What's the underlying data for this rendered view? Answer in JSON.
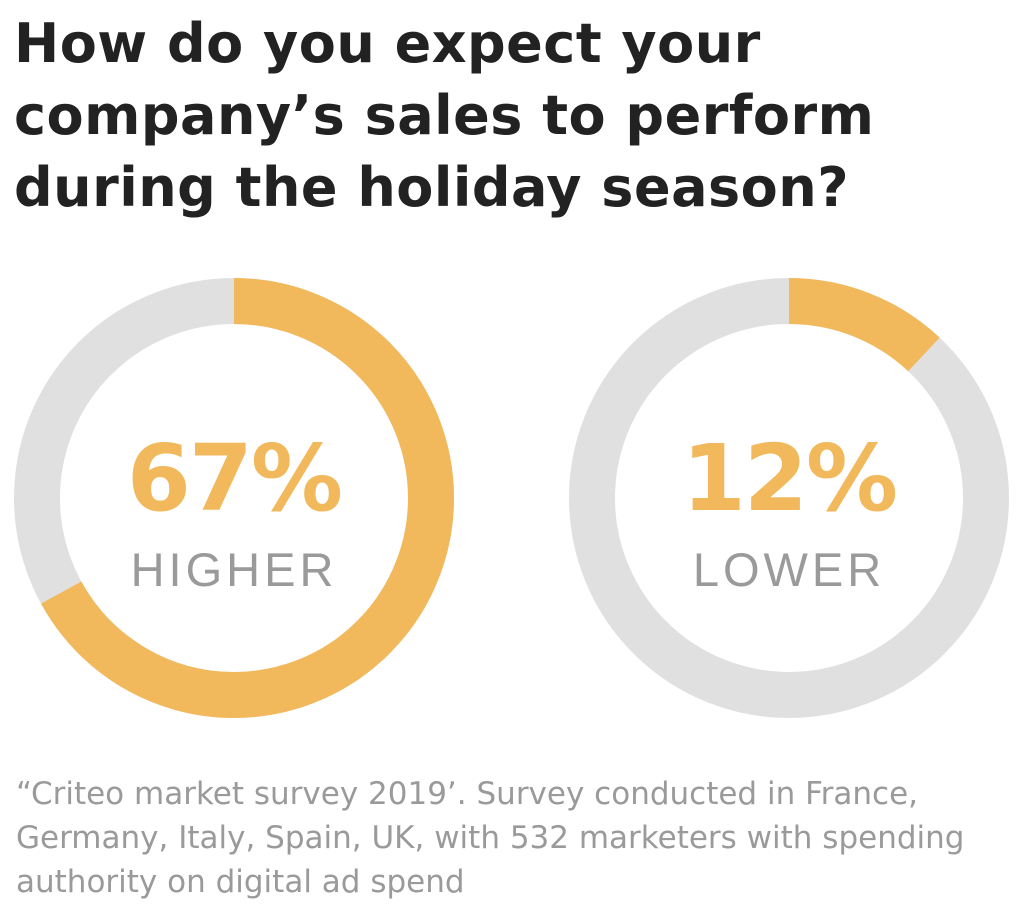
{
  "title": "How do you expect your company’s sales to perform during the holiday season?",
  "colors": {
    "accent": "#F2B95C",
    "track": "#E0E0E0",
    "title": "#222222",
    "label": "#9A9A9A"
  },
  "chart_data": {
    "type": "pie",
    "title": "How do you expect your company’s sales to perform during the holiday season?",
    "charts": [
      {
        "value_label": "67%",
        "category": "HIGHER",
        "percent": 67
      },
      {
        "value_label": "12%",
        "category": "LOWER",
        "percent": 12
      }
    ]
  },
  "source": "“Criteo market survey 2019’. Survey conducted in France, Germany, Italy, Spain, UK,  with 532 marketers with spending authority on digital ad spend"
}
